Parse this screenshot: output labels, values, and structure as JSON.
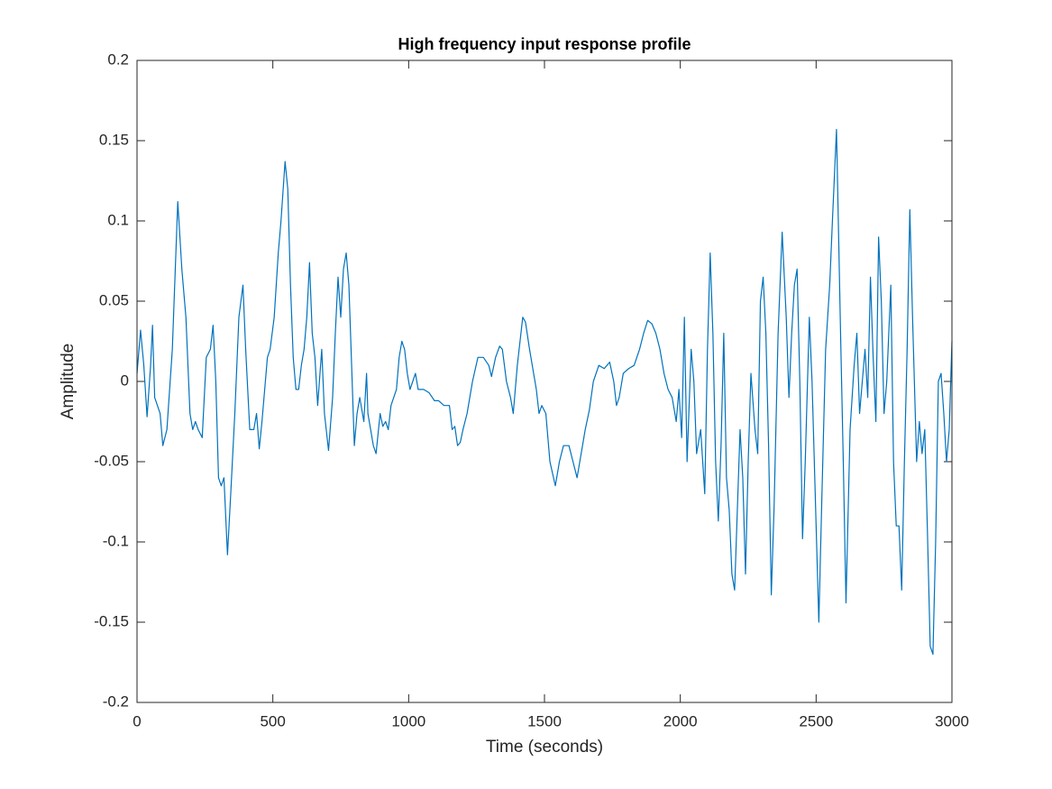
{
  "chart_data": {
    "type": "line",
    "title": "High frequency input response profile",
    "xlabel": "Time (seconds)",
    "ylabel": "Amplitude",
    "color": "#0072bd",
    "xlim": [
      0,
      3000
    ],
    "xticks": [
      0,
      500,
      1000,
      1500,
      2000,
      2500,
      3000
    ],
    "ylim": [
      -0.2,
      0.2
    ],
    "yticks": [
      -0.2,
      -0.15,
      -0.1,
      -0.05,
      0,
      0.05,
      0.1,
      0.15,
      0.2
    ],
    "x": [
      0,
      13,
      25,
      37,
      50,
      57,
      65,
      75,
      85,
      95,
      110,
      130,
      150,
      165,
      180,
      195,
      205,
      215,
      225,
      240,
      255,
      270,
      280,
      290,
      300,
      310,
      320,
      333,
      345,
      360,
      375,
      390,
      400,
      415,
      430,
      440,
      450,
      460,
      480,
      490,
      505,
      520,
      530,
      545,
      555,
      565,
      575,
      585,
      595,
      605,
      615,
      625,
      635,
      645,
      655,
      665,
      680,
      690,
      705,
      720,
      730,
      740,
      750,
      760,
      770,
      780,
      790,
      800,
      810,
      820,
      835,
      840,
      845,
      850,
      860,
      870,
      880,
      895,
      905,
      915,
      925,
      935,
      945,
      955,
      965,
      975,
      985,
      995,
      1005,
      1015,
      1025,
      1035,
      1055,
      1075,
      1095,
      1110,
      1130,
      1150,
      1160,
      1170,
      1180,
      1190,
      1200,
      1215,
      1235,
      1255,
      1275,
      1295,
      1305,
      1320,
      1335,
      1345,
      1360,
      1375,
      1385,
      1400,
      1420,
      1430,
      1445,
      1455,
      1470,
      1480,
      1490,
      1505,
      1520,
      1540,
      1555,
      1570,
      1590,
      1605,
      1620,
      1635,
      1650,
      1665,
      1680,
      1700,
      1720,
      1740,
      1755,
      1765,
      1775,
      1790,
      1810,
      1830,
      1850,
      1865,
      1880,
      1895,
      1910,
      1925,
      1940,
      1955,
      1970,
      1985,
      1995,
      2005,
      2015,
      2025,
      2040,
      2050,
      2060,
      2075,
      2090,
      2100,
      2110,
      2120,
      2130,
      2140,
      2150,
      2160,
      2170,
      2180,
      2190,
      2200,
      2210,
      2220,
      2230,
      2240,
      2250,
      2260,
      2275,
      2285,
      2295,
      2305,
      2315,
      2325,
      2335,
      2345,
      2360,
      2375,
      2390,
      2400,
      2410,
      2420,
      2430,
      2440,
      2450,
      2460,
      2475,
      2485,
      2495,
      2510,
      2520,
      2535,
      2550,
      2560,
      2575,
      2590,
      2600,
      2610,
      2625,
      2640,
      2650,
      2660,
      2670,
      2680,
      2690,
      2700,
      2710,
      2720,
      2730,
      2740,
      2750,
      2760,
      2775,
      2785,
      2795,
      2805,
      2815,
      2825,
      2835,
      2845,
      2855,
      2870,
      2880,
      2890,
      2900,
      2910,
      2920,
      2930,
      2940,
      2950,
      2960,
      2970,
      2980,
      2990,
      3000
    ],
    "values": [
      0.005,
      0.032,
      0.01,
      -0.022,
      0.01,
      0.035,
      -0.01,
      -0.015,
      -0.02,
      -0.04,
      -0.03,
      0.02,
      0.112,
      0.07,
      0.04,
      -0.02,
      -0.03,
      -0.025,
      -0.03,
      -0.035,
      0.015,
      0.02,
      0.035,
      0.0,
      -0.06,
      -0.065,
      -0.06,
      -0.108,
      -0.07,
      -0.02,
      0.04,
      0.06,
      0.02,
      -0.03,
      -0.03,
      -0.02,
      -0.042,
      -0.025,
      0.015,
      0.02,
      0.04,
      0.08,
      0.1,
      0.137,
      0.12,
      0.06,
      0.015,
      -0.005,
      -0.005,
      0.01,
      0.02,
      0.04,
      0.074,
      0.03,
      0.015,
      -0.015,
      0.02,
      -0.02,
      -0.043,
      -0.01,
      0.03,
      0.065,
      0.04,
      0.07,
      0.08,
      0.06,
      0.01,
      -0.04,
      -0.02,
      -0.01,
      -0.025,
      -0.01,
      0.005,
      -0.02,
      -0.03,
      -0.04,
      -0.045,
      -0.02,
      -0.028,
      -0.025,
      -0.03,
      -0.015,
      -0.01,
      -0.005,
      0.015,
      0.025,
      0.02,
      0.005,
      -0.005,
      0.0,
      0.005,
      -0.005,
      -0.005,
      -0.007,
      -0.012,
      -0.012,
      -0.015,
      -0.015,
      -0.03,
      -0.028,
      -0.04,
      -0.038,
      -0.03,
      -0.02,
      0.0,
      0.015,
      0.015,
      0.01,
      0.003,
      0.015,
      0.022,
      0.02,
      0.0,
      -0.01,
      -0.02,
      0.01,
      0.04,
      0.037,
      0.02,
      0.01,
      -0.005,
      -0.02,
      -0.015,
      -0.02,
      -0.05,
      -0.065,
      -0.05,
      -0.04,
      -0.04,
      -0.05,
      -0.06,
      -0.045,
      -0.03,
      -0.018,
      0.0,
      0.01,
      0.008,
      0.012,
      0.0,
      -0.015,
      -0.01,
      0.005,
      0.008,
      0.01,
      0.02,
      0.03,
      0.038,
      0.036,
      0.03,
      0.02,
      0.005,
      -0.005,
      -0.01,
      -0.025,
      -0.005,
      -0.035,
      0.04,
      -0.05,
      0.02,
      0.0,
      -0.045,
      -0.03,
      -0.07,
      0.02,
      0.08,
      0.03,
      -0.05,
      -0.087,
      -0.04,
      0.03,
      -0.06,
      -0.08,
      -0.12,
      -0.13,
      -0.08,
      -0.03,
      -0.06,
      -0.12,
      -0.05,
      0.005,
      -0.03,
      -0.045,
      0.05,
      0.065,
      0.03,
      -0.04,
      -0.133,
      -0.08,
      0.03,
      0.093,
      0.04,
      -0.01,
      0.03,
      0.06,
      0.07,
      0.0,
      -0.098,
      -0.05,
      0.04,
      0.0,
      -0.06,
      -0.15,
      -0.08,
      0.02,
      0.06,
      0.1,
      0.157,
      0.03,
      -0.05,
      -0.138,
      -0.03,
      0.01,
      0.03,
      -0.02,
      0.0,
      0.02,
      -0.01,
      0.065,
      0.015,
      -0.025,
      0.09,
      0.05,
      -0.02,
      0.0,
      0.06,
      -0.05,
      -0.09,
      -0.09,
      -0.13,
      -0.05,
      0.02,
      0.107,
      0.04,
      -0.05,
      -0.025,
      -0.045,
      -0.03,
      -0.095,
      -0.165,
      -0.17,
      -0.1,
      0.0,
      0.005,
      -0.02,
      -0.05,
      -0.03,
      0.025
    ]
  }
}
